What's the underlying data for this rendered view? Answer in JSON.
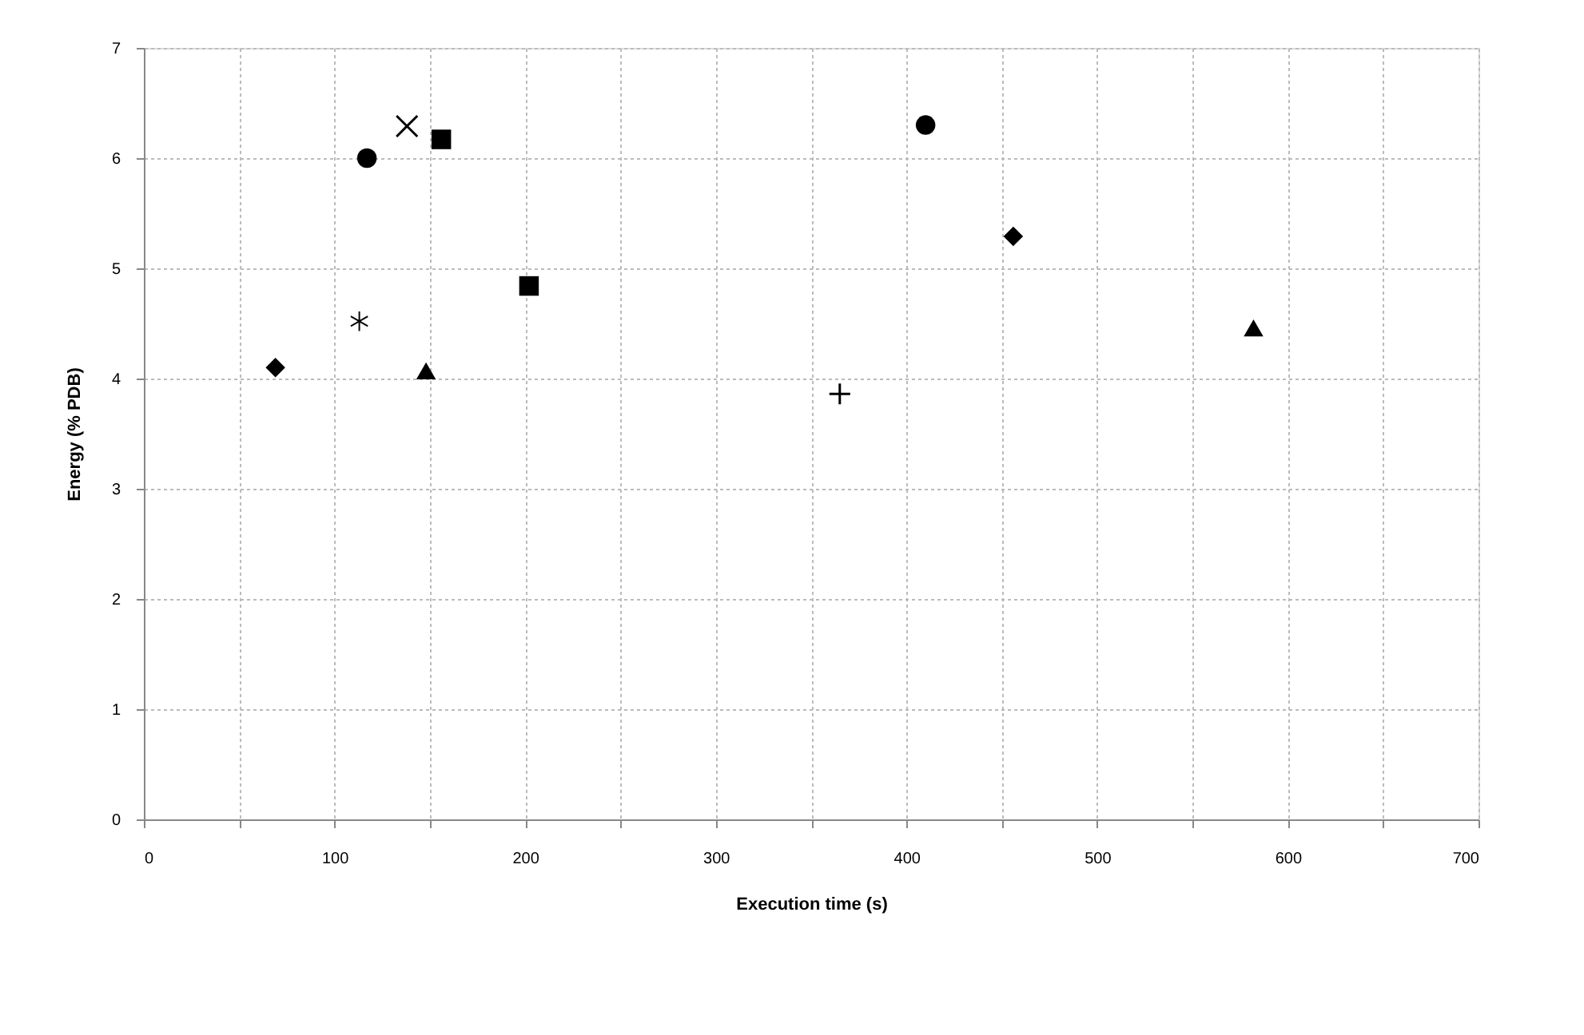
{
  "chart_data": {
    "type": "scatter",
    "xlabel": "Execution time (s)",
    "ylabel": "Energy (% PDB)",
    "xlim": [
      0,
      700
    ],
    "ylim": [
      0,
      7
    ],
    "xticks": [
      0,
      {
        "value": 50,
        "label": null
      },
      100,
      {
        "value": 150,
        "label": null
      },
      200,
      {
        "value": 250,
        "label": null
      },
      300,
      {
        "value": 350,
        "label": null
      },
      400,
      {
        "value": 450,
        "label": null
      },
      500,
      {
        "value": 550,
        "label": null
      },
      600,
      {
        "value": 650,
        "label": null
      },
      700
    ],
    "yticks": [
      0,
      1,
      2,
      3,
      4,
      5,
      6,
      7
    ],
    "grid": true,
    "legend": false,
    "series": [
      {
        "color": "#000000",
        "marker": "diamond",
        "x": [
          69
        ],
        "values": [
          4.1
        ]
      },
      {
        "color": "#000000",
        "marker": "star",
        "x": [
          113
        ],
        "values": [
          4.52
        ]
      },
      {
        "color": "#000000",
        "marker": "circle",
        "x": [
          117
        ],
        "values": [
          6.0
        ]
      },
      {
        "color": "#000000",
        "marker": "x",
        "x": [
          138
        ],
        "values": [
          6.29
        ]
      },
      {
        "color": "#000000",
        "marker": "square",
        "x": [
          156
        ],
        "values": [
          6.17
        ]
      },
      {
        "color": "#000000",
        "marker": "triangle",
        "x": [
          148
        ],
        "values": [
          4.07
        ]
      },
      {
        "color": "#000000",
        "marker": "square",
        "x": [
          202
        ],
        "values": [
          4.84
        ]
      },
      {
        "color": "#000000",
        "marker": "cross",
        "x": [
          365
        ],
        "values": [
          3.86
        ]
      },
      {
        "color": "#000000",
        "marker": "circle",
        "x": [
          410
        ],
        "values": [
          6.3
        ]
      },
      {
        "color": "#000000",
        "marker": "diamond",
        "x": [
          456
        ],
        "values": [
          5.29
        ]
      },
      {
        "color": "#000000",
        "marker": "triangle",
        "x": [
          582
        ],
        "values": [
          4.46
        ]
      }
    ]
  }
}
